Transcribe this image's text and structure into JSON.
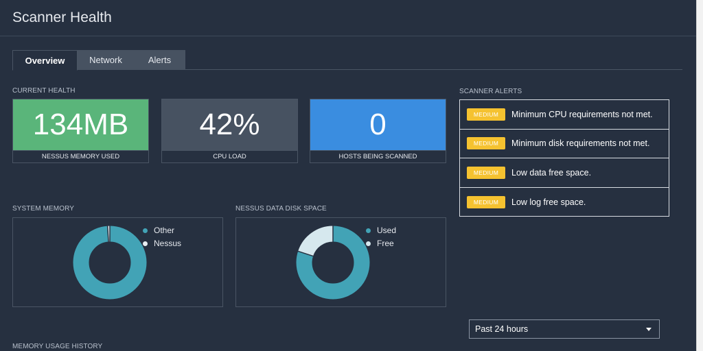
{
  "header": {
    "title": "Scanner Health"
  },
  "tabs": [
    {
      "label": "Overview"
    },
    {
      "label": "Network"
    },
    {
      "label": "Alerts"
    }
  ],
  "current_health": {
    "label": "CURRENT HEALTH",
    "cards": [
      {
        "value": "134MB",
        "caption": "NESSUS MEMORY USED",
        "color": "#5ab57a"
      },
      {
        "value": "42%",
        "caption": "CPU LOAD",
        "color": "#475261"
      },
      {
        "value": "0",
        "caption": "HOSTS BEING SCANNED",
        "color": "#3a8de0"
      }
    ]
  },
  "scanner_alerts": {
    "label": "SCANNER ALERTS",
    "items": [
      {
        "severity": "MEDIUM",
        "message": "Minimum CPU requirements not met."
      },
      {
        "severity": "MEDIUM",
        "message": "Minimum disk requirements not met."
      },
      {
        "severity": "MEDIUM",
        "message": "Low data free space."
      },
      {
        "severity": "MEDIUM",
        "message": "Low log free space."
      }
    ]
  },
  "system_memory": {
    "label": "SYSTEM MEMORY",
    "legend": [
      {
        "name": "Other",
        "color": "#42a3b6"
      },
      {
        "name": "Nessus",
        "color": "#e8eef2"
      }
    ]
  },
  "disk_space": {
    "label": "NESSUS DATA DISK SPACE",
    "legend": [
      {
        "name": "Used",
        "color": "#42a3b6"
      },
      {
        "name": "Free",
        "color": "#d6e8ee"
      }
    ]
  },
  "chart_data": [
    {
      "type": "pie",
      "categories": [
        "Other",
        "Nessus"
      ],
      "values": [
        99,
        1
      ]
    },
    {
      "type": "pie",
      "categories": [
        "Used",
        "Free"
      ],
      "values": [
        80,
        20
      ]
    }
  ],
  "time_range": {
    "selected": "Past 24 hours"
  },
  "memory_history": {
    "label": "MEMORY USAGE HISTORY"
  }
}
